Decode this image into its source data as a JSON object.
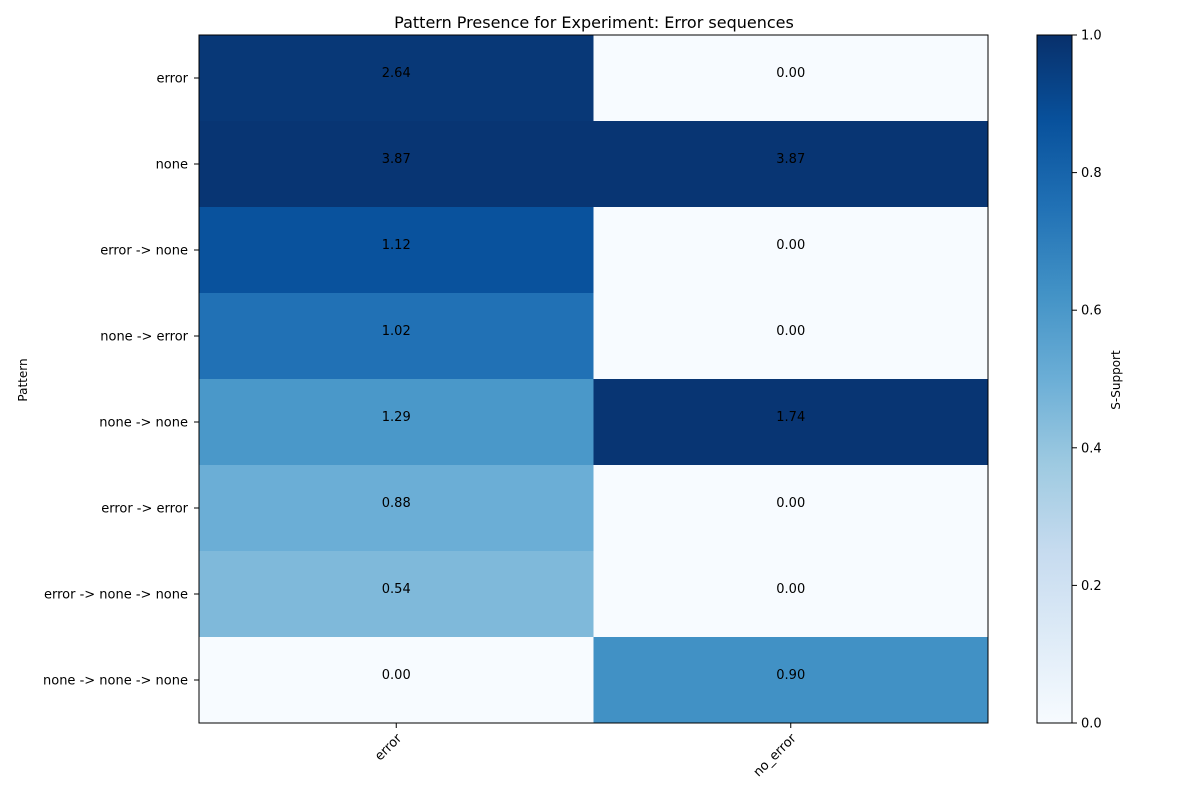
{
  "chart_data": {
    "type": "heatmap",
    "title": "Pattern Presence for Experiment: Error sequences",
    "xlabel": "",
    "ylabel": "Pattern",
    "x_categories": [
      "error",
      "no_error"
    ],
    "y_categories": [
      "error",
      "none",
      "error -> none",
      "none -> error",
      "none -> none",
      "error -> error",
      "error -> none -> none",
      "none -> none -> none"
    ],
    "cell_labels": [
      [
        "2.64",
        "0.00"
      ],
      [
        "3.87",
        "3.87"
      ],
      [
        "1.12",
        "0.00"
      ],
      [
        "1.02",
        "0.00"
      ],
      [
        "1.29",
        "1.74"
      ],
      [
        "0.88",
        "0.00"
      ],
      [
        "0.54",
        "0.00"
      ],
      [
        "0.00",
        "0.90"
      ]
    ],
    "color_values": [
      [
        0.97,
        0.0
      ],
      [
        0.98,
        0.98
      ],
      [
        0.87,
        0.0
      ],
      [
        0.75,
        0.0
      ],
      [
        0.6,
        0.98
      ],
      [
        0.5,
        0.0
      ],
      [
        0.45,
        0.0
      ],
      [
        0.0,
        0.63
      ]
    ],
    "colorbar": {
      "label": "S-Support",
      "range": [
        0,
        1
      ],
      "ticks": [
        "0.0",
        "0.2",
        "0.4",
        "0.6",
        "0.8",
        "1.0"
      ],
      "colormap": "Blues"
    }
  }
}
